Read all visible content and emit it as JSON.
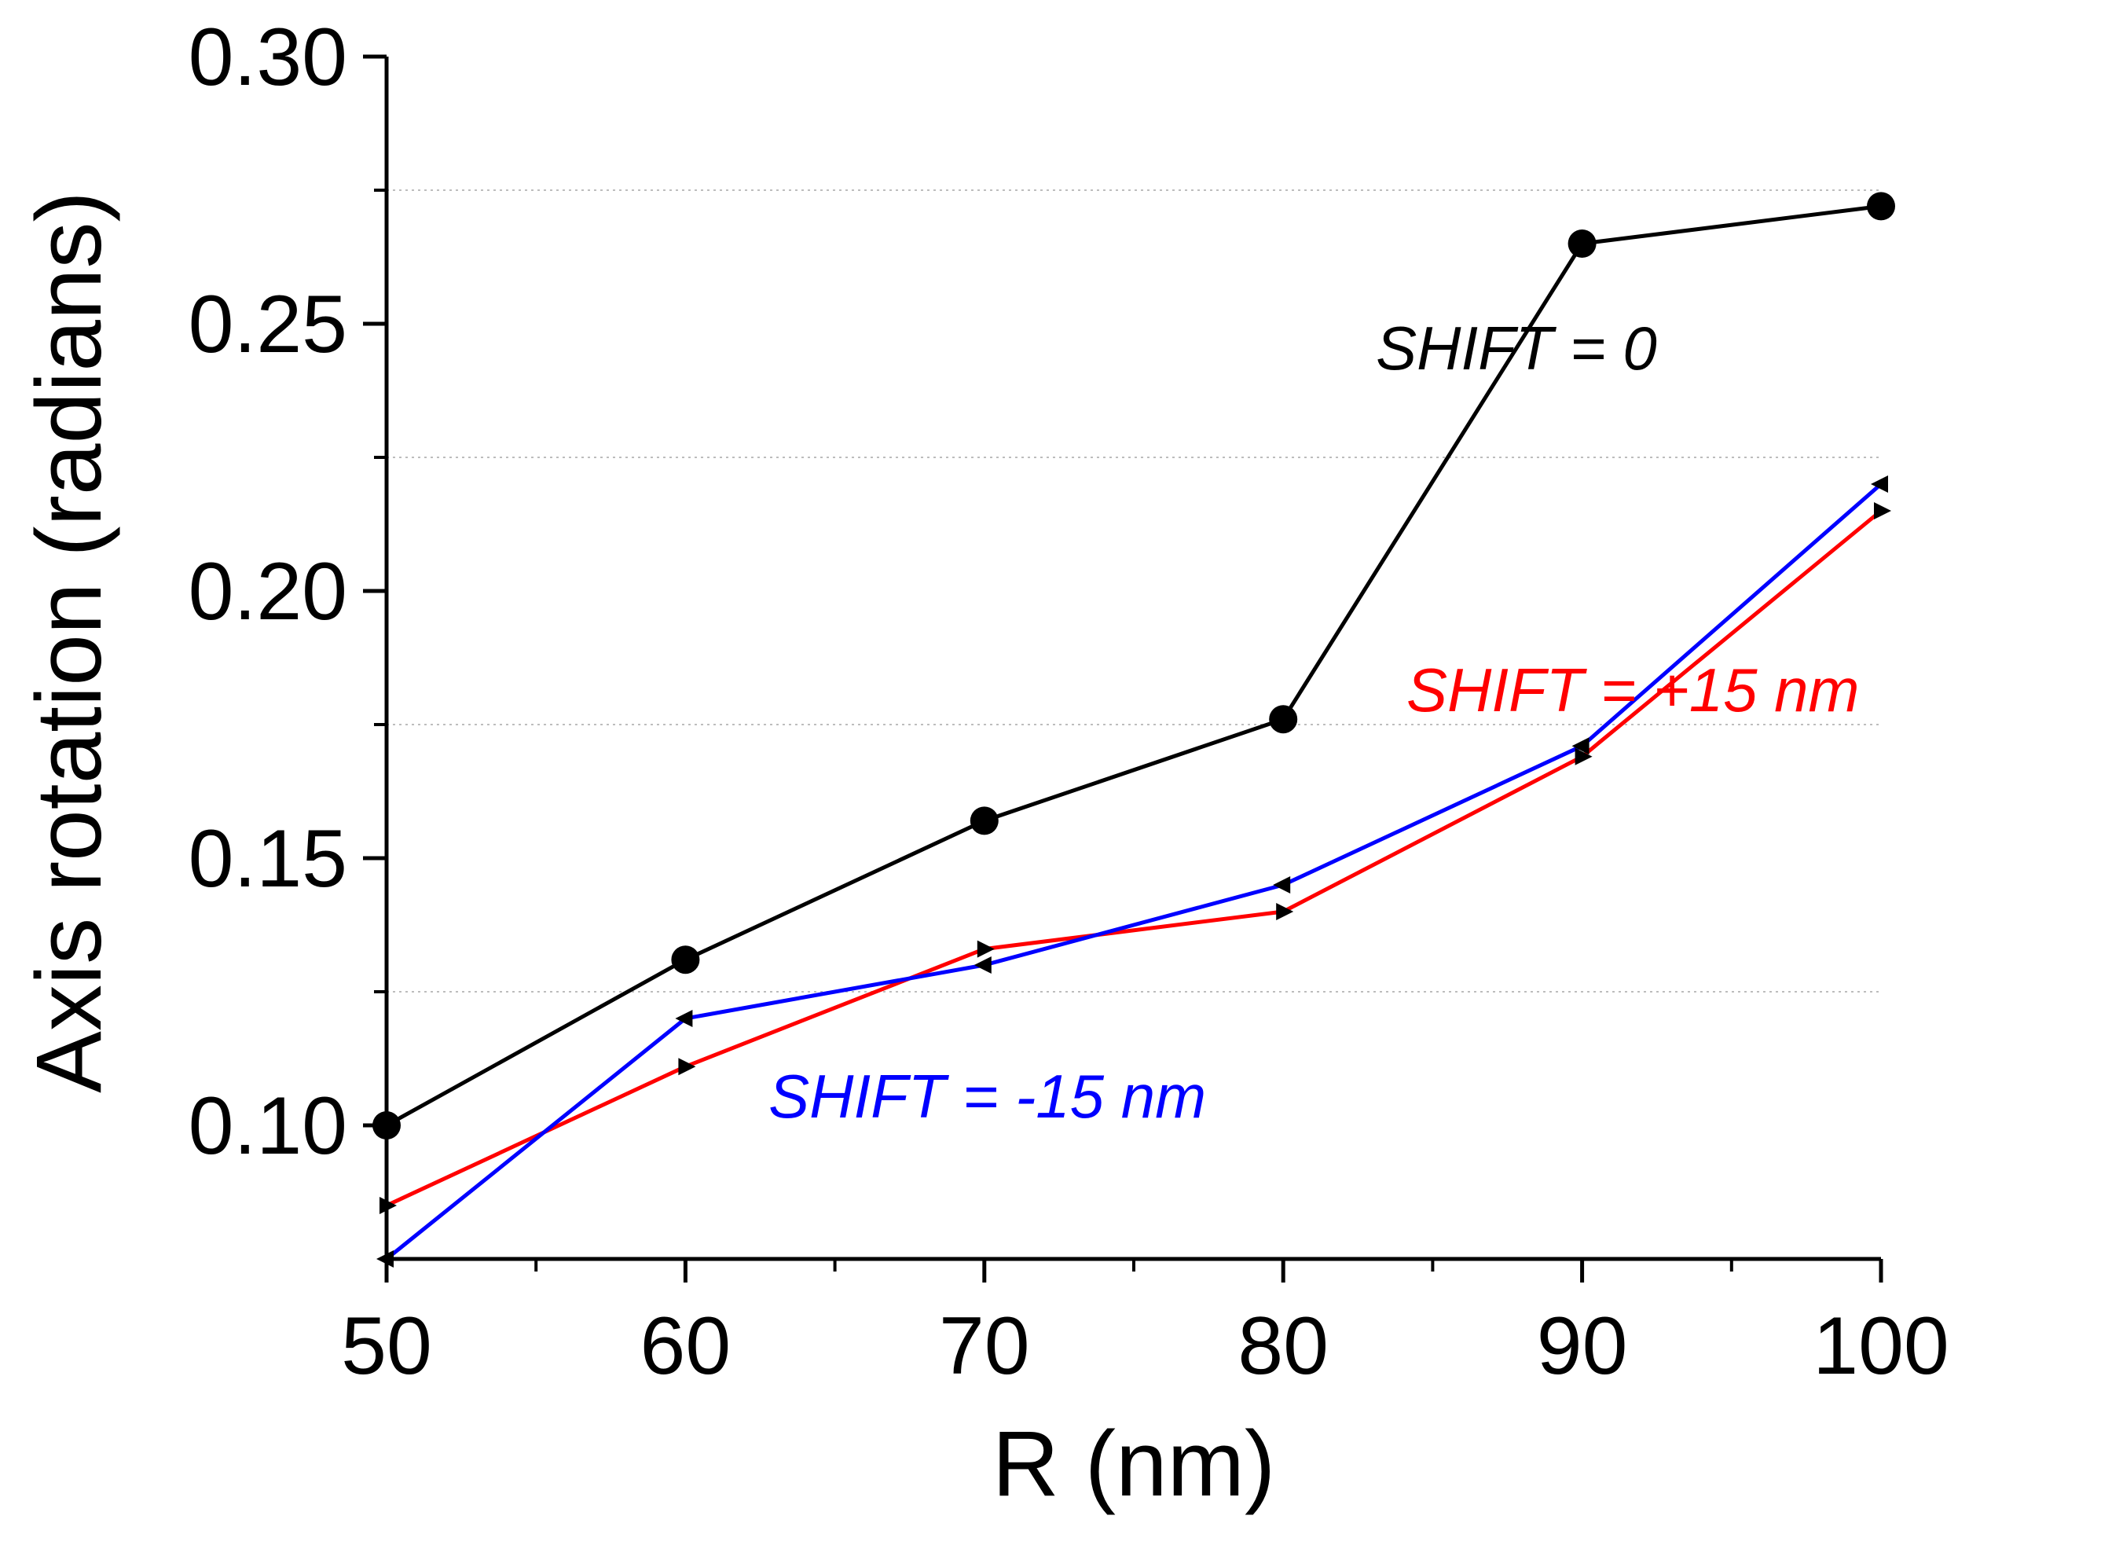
{
  "chart_data": {
    "type": "line",
    "title": "",
    "xlabel": "R (nm)",
    "ylabel": "Axis rotation (radians)",
    "xlim": [
      50,
      100
    ],
    "ylim": [
      0.075,
      0.3
    ],
    "x_ticks": [
      50,
      60,
      70,
      80,
      90,
      100
    ],
    "x_tick_labels": [
      "50",
      "60",
      "70",
      "80",
      "90",
      "100"
    ],
    "y_ticks": [
      0.1,
      0.15,
      0.2,
      0.25,
      0.3
    ],
    "y_tick_labels": [
      "0.10",
      "0.15",
      "0.20",
      "0.25",
      "0.30"
    ],
    "minor_y_ticks": [
      0.125,
      0.175,
      0.225,
      0.275
    ],
    "minor_x_ticks": [
      55,
      65,
      75,
      85,
      95
    ],
    "grid": "dotted horizontal at minor y ticks",
    "legend": "none (inline labels)",
    "series": [
      {
        "color": "#000000",
        "marker": "circle",
        "points": [
          [
            50,
            0.1
          ],
          [
            60,
            0.131
          ],
          [
            70,
            0.157
          ],
          [
            80,
            0.176
          ],
          [
            90,
            0.265
          ],
          [
            100,
            0.272
          ]
        ]
      },
      {
        "color": "#ff0000",
        "marker": "triangle-right",
        "points": [
          [
            50,
            0.085
          ],
          [
            60,
            0.111
          ],
          [
            70,
            0.133
          ],
          [
            80,
            0.14
          ],
          [
            90,
            0.169
          ],
          [
            100,
            0.215
          ]
        ]
      },
      {
        "color": "#0000ff",
        "marker": "triangle-left",
        "points": [
          [
            50,
            0.075
          ],
          [
            60,
            0.12
          ],
          [
            70,
            0.13
          ],
          [
            80,
            0.145
          ],
          [
            90,
            0.171
          ],
          [
            100,
            0.22
          ]
        ]
      }
    ],
    "annotations": [
      {
        "text": "SHIFT = 0",
        "color": "#000000",
        "x": 87.8,
        "y": 0.2415
      },
      {
        "text": "SHIFT = +15 nm",
        "color": "#ff0000",
        "x": 91.7,
        "y": 0.1775
      },
      {
        "text": "SHIFT = -15 nm",
        "color": "#0000ff",
        "x": 70.1,
        "y": 0.1015
      }
    ]
  }
}
